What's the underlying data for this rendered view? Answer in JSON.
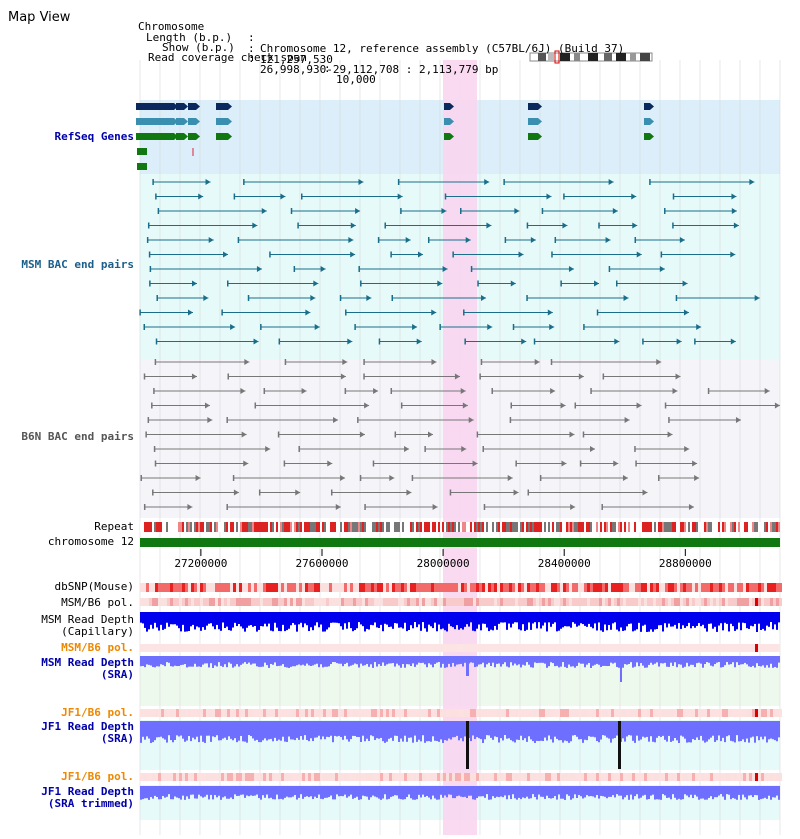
{
  "view_title": "Map View",
  "info": [
    {
      "label": "Chromosome",
      "value": "Chromosome 12, reference assembly (C57BL/6J) (Build 37)"
    },
    {
      "label": "Length (b.p.)",
      "value": "121,257,530"
    },
    {
      "label": "Show (b.p.)",
      "value": "26,998,930-29,112,708 : 2,113,779 bp"
    },
    {
      "label": "Read coverage check span",
      "value": "10,000"
    }
  ],
  "tracks": {
    "refseq": "RefSeq Genes",
    "msm_bac": "MSM BAC end pairs",
    "b6n_bac": "B6N BAC end pairs",
    "repeat": "Repeat",
    "chromosome": "chromosome 12",
    "dbsnp": "dbSNP(Mouse)",
    "msm_b6_pol_1": "MSM/B6 pol.",
    "msm_read_depth_cap_1": "MSM Read Depth",
    "msm_read_depth_cap_2": "(Capillary)",
    "msm_b6_pol_2": "MSM/B6 pol.",
    "msm_read_depth_sra_1": "MSM Read Depth",
    "msm_read_depth_sra_2": "(SRA)",
    "jf1_b6_pol_1": "JF1/B6 pol.",
    "jf1_read_depth_sra_1": "JF1 Read Depth",
    "jf1_read_depth_sra_2": "(SRA)",
    "jf1_b6_pol_2": "JF1/B6 pol.",
    "jf1_read_depth_trim_1": "JF1 Read Depth",
    "jf1_read_depth_trim_2": "(SRA trimmed)"
  },
  "axis": {
    "start_bp": 26998930,
    "end_bp": 29112708,
    "ticks": [
      "27200000",
      "27600000",
      "28000000",
      "28400000",
      "28800000"
    ]
  },
  "highlight": {
    "start_bp": 28000000,
    "end_bp": 28110000
  },
  "colors": {
    "refseq_bg": "#dbeefa",
    "msm_bac_bg": "#e6fafa",
    "b6n_bac_bg": "#f4f4f9",
    "highlight": "#f8d6f0",
    "msm_bac_line": "#1a6e8a",
    "b6n_bac_line": "#777777",
    "chromosome": "#117711",
    "msm_depth": "#0000ee",
    "sra_depth": "#6f6fff",
    "pol_orange": "#ee8800",
    "label_blue": "#0000aa",
    "label_teal": "#1a5f8a"
  }
}
